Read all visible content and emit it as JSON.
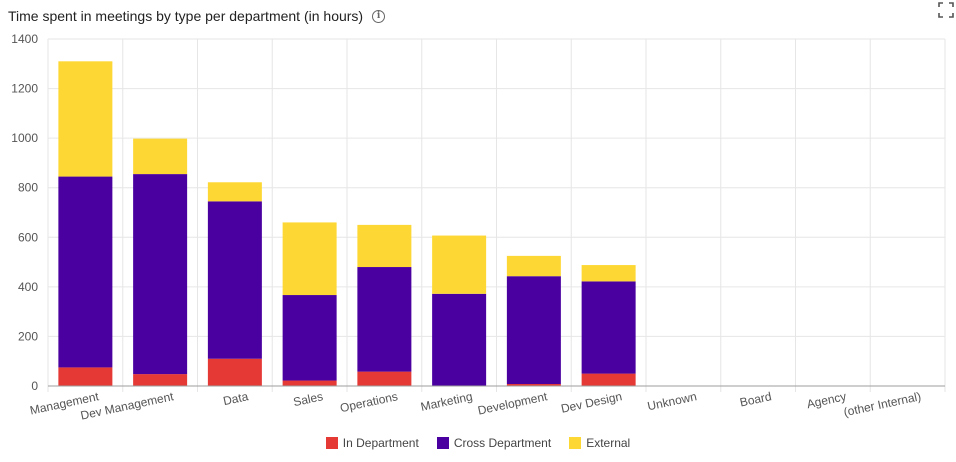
{
  "header": {
    "title": "Time spent in meetings by type per department (in hours)",
    "info_icon": "info-circle-icon",
    "expand_icon": "fullscreen-expand-icon"
  },
  "chart_data": {
    "type": "bar",
    "stacked": true,
    "title": "Time spent in meetings by type per department (in hours)",
    "categories": [
      "Management",
      "Dev Management",
      "Data",
      "Sales",
      "Operations",
      "Marketing",
      "Development",
      "Dev Design",
      "Unknown",
      "Board",
      "Agency",
      "(other Internal)"
    ],
    "series": [
      {
        "name": "In Department",
        "color": "#e53935",
        "values": [
          75,
          48,
          110,
          22,
          58,
          0,
          8,
          50,
          0,
          0,
          0,
          0
        ]
      },
      {
        "name": "Cross Department",
        "color": "#4a00a0",
        "values": [
          770,
          807,
          635,
          345,
          422,
          372,
          435,
          372,
          0,
          0,
          0,
          0
        ]
      },
      {
        "name": "External",
        "color": "#fdd835",
        "values": [
          465,
          143,
          77,
          293,
          170,
          235,
          82,
          66,
          0,
          0,
          0,
          0
        ]
      }
    ],
    "ylim": [
      0,
      1400
    ],
    "yticks": [
      "0",
      "200",
      "400",
      "600",
      "800",
      "1000",
      "1200",
      "1400"
    ],
    "grid": true,
    "legend_position": "bottom"
  }
}
